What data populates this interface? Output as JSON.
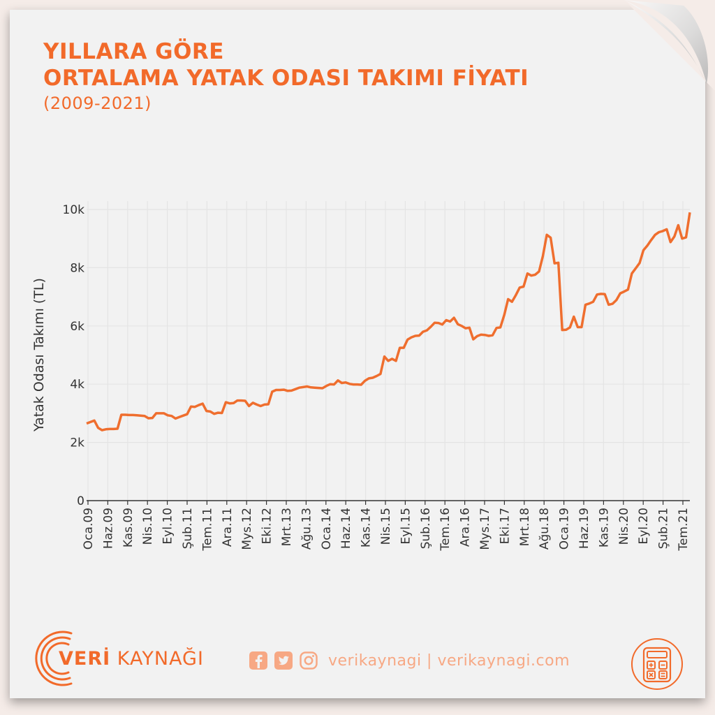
{
  "title_line1": "YILLARA GÖRE",
  "title_line2": "ORTALAMA YATAK ODASI TAKIMI FİYATI",
  "subtitle": "(2009-2021)",
  "footer": {
    "brand_bold": "VERİ",
    "brand_light": " KAYNAĞI",
    "handles": "verikaynagi | verikaynagi.com"
  },
  "colors": {
    "accent": "#f26a2a",
    "line": "#ef6e2e",
    "grid": "#e4e4e4",
    "light_accent": "#f7a884"
  },
  "chart_data": {
    "type": "line",
    "title": "",
    "xlabel": "",
    "ylabel": "Yatak Odası Takımı (TL)",
    "ylim": [
      0,
      10000
    ],
    "yticks": [
      0,
      2000,
      4000,
      6000,
      8000,
      10000
    ],
    "ytick_labels": [
      "0",
      "2k",
      "4k",
      "6k",
      "8k",
      "10k"
    ],
    "xtick_labels": [
      "Oca.09",
      "Haz.09",
      "Kas.09",
      "Nis.10",
      "Eyl.10",
      "Şub.11",
      "Tem.11",
      "Ara.11",
      "Mys.12",
      "Eki.12",
      "Mrt.13",
      "Ağu.13",
      "Oca.14",
      "Haz.14",
      "Kas.14",
      "Nis.15",
      "Eyl.15",
      "Şub.16",
      "Tem.16",
      "Ara.16",
      "Mys.17",
      "Eki.17",
      "Mrt.18",
      "Ağu.18",
      "Oca.19",
      "Haz.19",
      "Kas.19",
      "Nis.20",
      "Eyl.20",
      "Şub.21",
      "Tem.21"
    ],
    "grid": true,
    "legend": "none",
    "series": [
      {
        "values": [
          2650,
          2700,
          2750,
          2500,
          2420,
          2450,
          2460,
          2460,
          2470,
          2950,
          2950,
          2940,
          2940,
          2930,
          2920,
          2910,
          2830,
          2840,
          3000,
          3000,
          3000,
          2930,
          2910,
          2820,
          2870,
          2920,
          2970,
          3230,
          3220,
          3280,
          3330,
          3080,
          3060,
          2980,
          3020,
          3010,
          3380,
          3340,
          3350,
          3440,
          3440,
          3430,
          3250,
          3360,
          3300,
          3250,
          3300,
          3310,
          3740,
          3800,
          3800,
          3810,
          3770,
          3780,
          3830,
          3880,
          3900,
          3920,
          3890,
          3880,
          3870,
          3860,
          3940,
          4000,
          3990,
          4130,
          4040,
          4060,
          4010,
          3990,
          3990,
          3980,
          4120,
          4200,
          4220,
          4280,
          4350,
          4950,
          4800,
          4870,
          4800,
          5250,
          5250,
          5530,
          5610,
          5660,
          5670,
          5800,
          5850,
          5970,
          6110,
          6100,
          6050,
          6200,
          6150,
          6280,
          6060,
          6000,
          5920,
          5940,
          5540,
          5650,
          5700,
          5690,
          5660,
          5680,
          5930,
          5950,
          6380,
          6920,
          6830,
          7060,
          7320,
          7350,
          7800,
          7730,
          7760,
          7870,
          8400,
          9130,
          9030,
          8150,
          8170,
          5860,
          5870,
          5950,
          6320,
          5960,
          5960,
          6730,
          6770,
          6830,
          7080,
          7100,
          7090,
          6730,
          6760,
          6890,
          7120,
          7180,
          7250,
          7800,
          7980,
          8160,
          8600,
          8760,
          8950,
          9130,
          9220,
          9260,
          9320,
          8880,
          9070,
          9460,
          9000,
          9040,
          9900
        ]
      }
    ]
  }
}
